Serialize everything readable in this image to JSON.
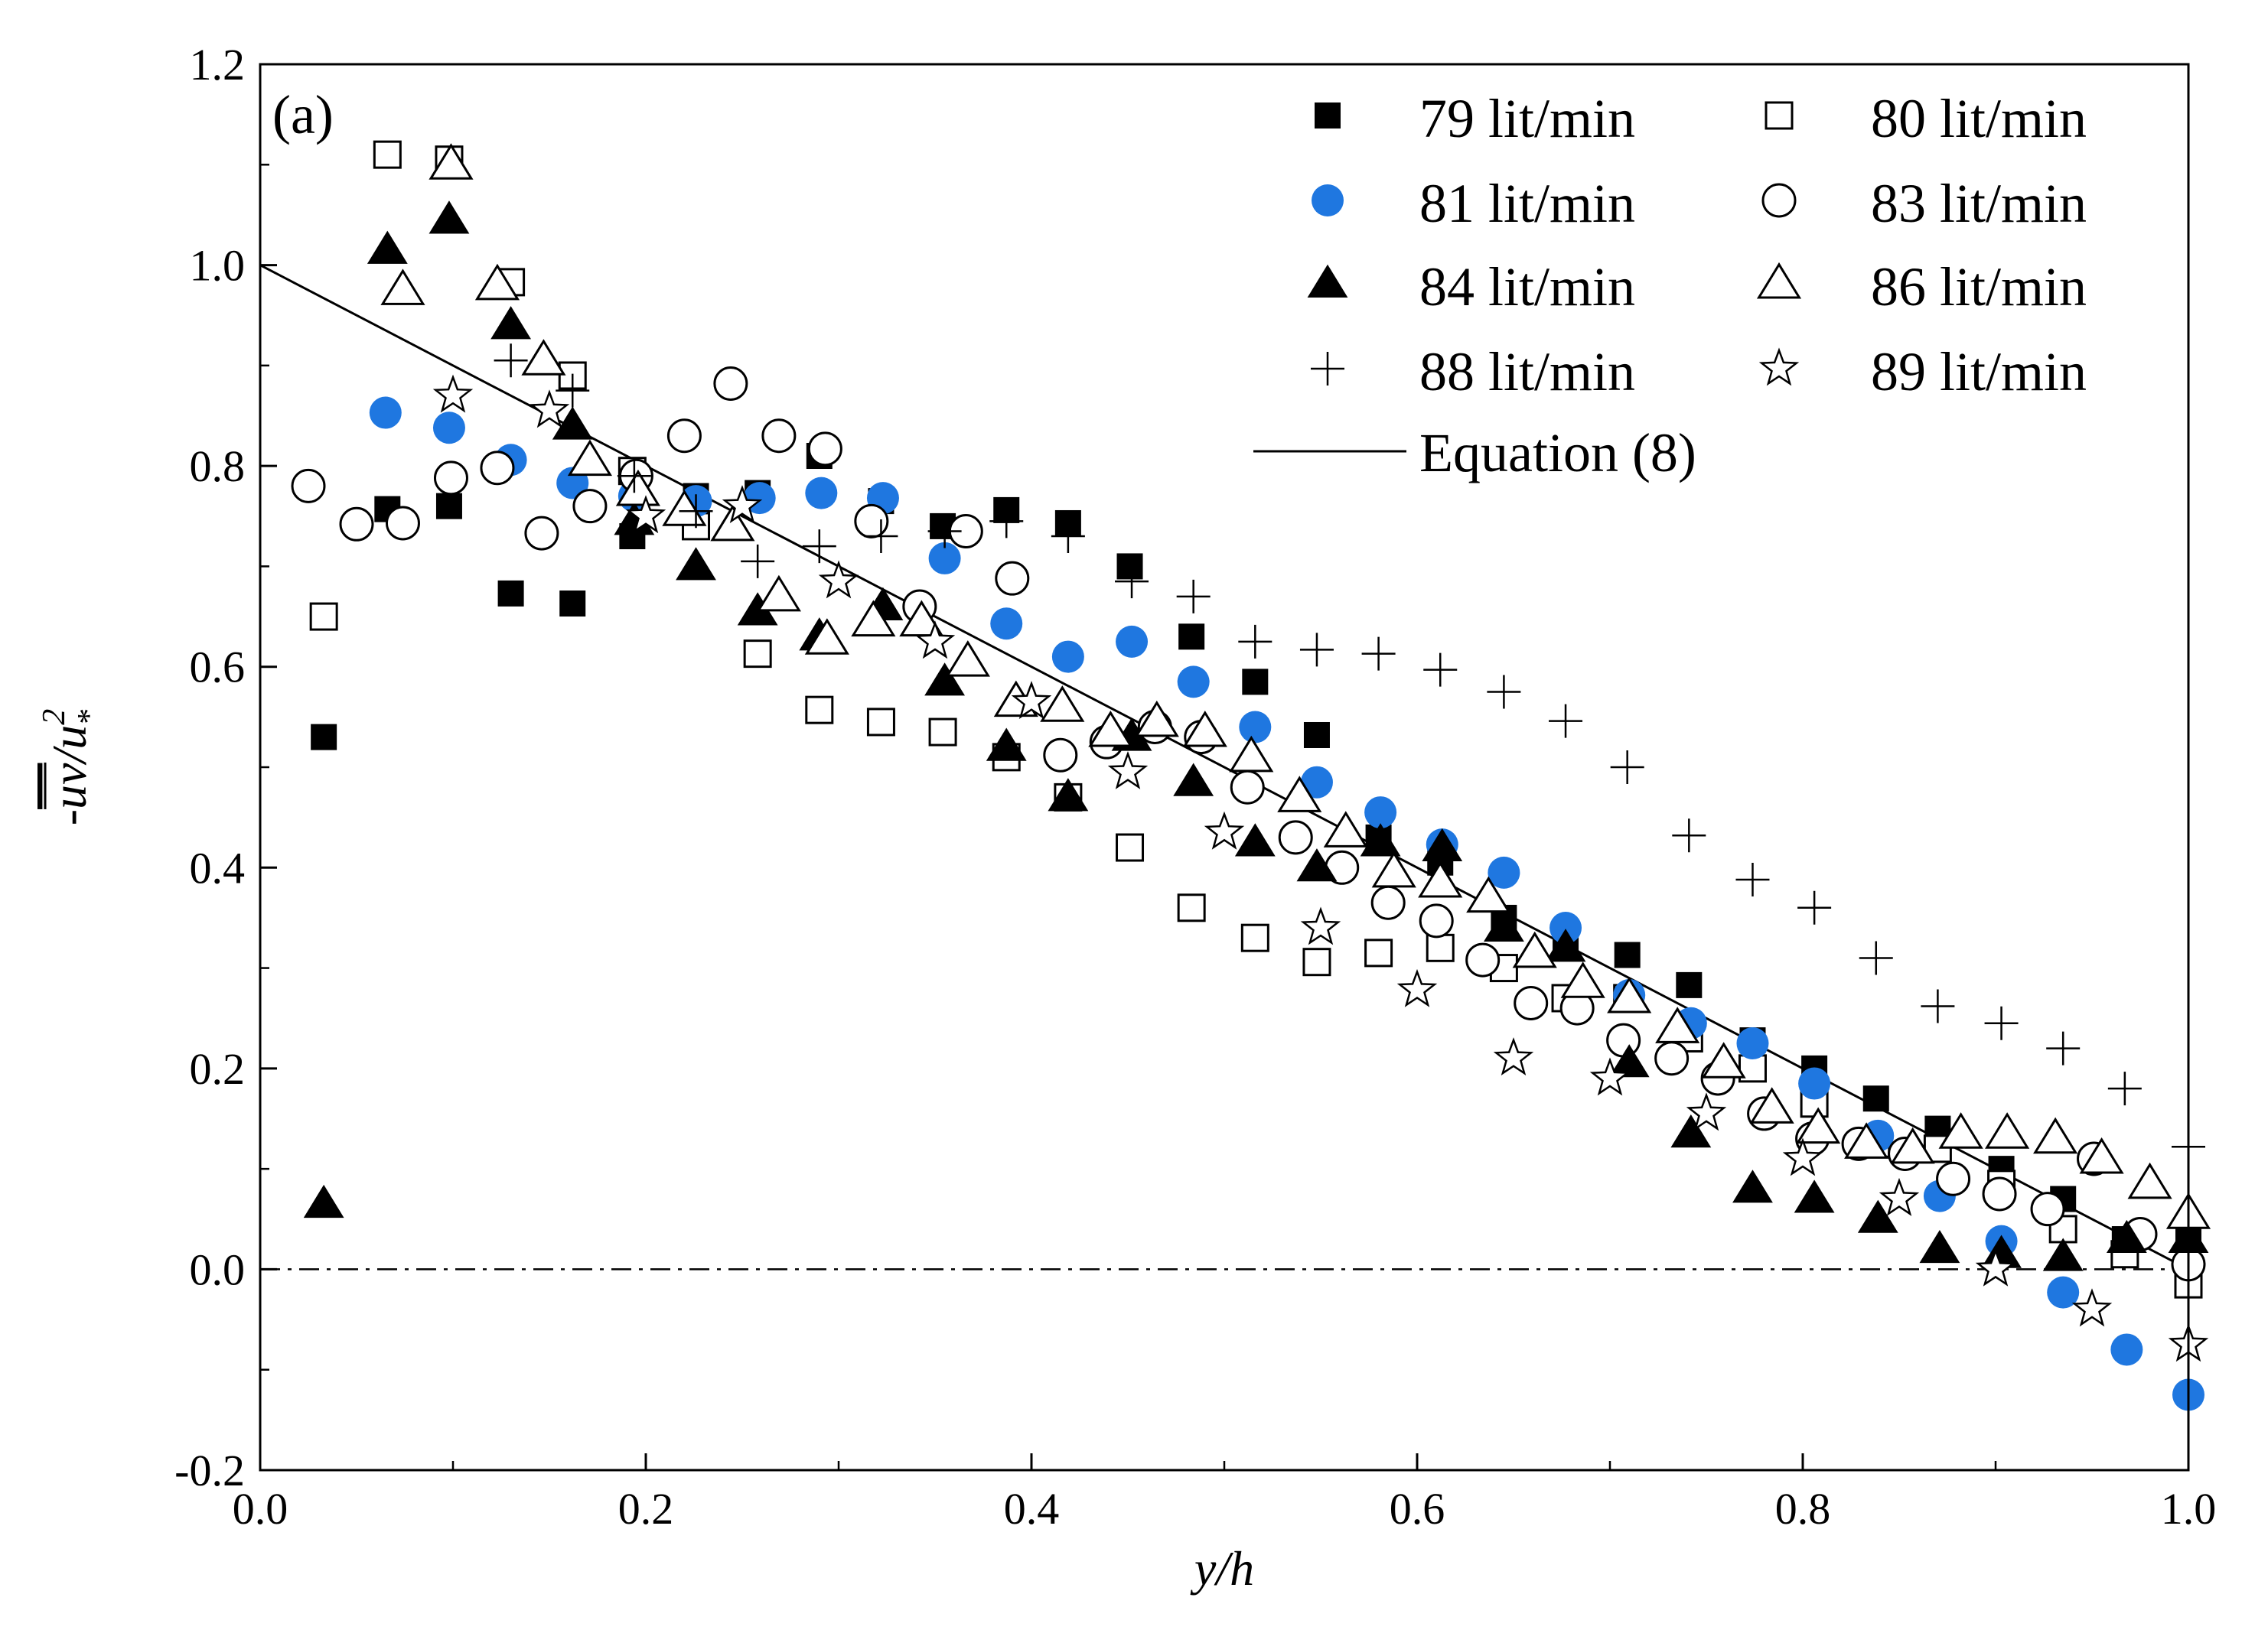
{
  "chart_data": {
    "type": "scatter",
    "title": "",
    "panel_label": "(a)",
    "xlabel": "y/h",
    "ylabel": "-uv/u*²",
    "ylabel_parts": {
      "prefix": "-",
      "overlined": "uv",
      "mid": "/u",
      "sup": "2",
      "sub": "*"
    },
    "xlim": [
      0.0,
      1.0
    ],
    "ylim": [
      -0.2,
      1.2
    ],
    "xticks": [
      "0.0",
      "0.2",
      "0.4",
      "0.6",
      "0.8",
      "1.0"
    ],
    "yticks": [
      "-0.2",
      "0.0",
      "0.2",
      "0.4",
      "0.6",
      "0.8",
      "1.0",
      "1.2"
    ],
    "legend_position": "top-right",
    "reference_line": {
      "y": 0.0,
      "style": "dash-dot"
    },
    "series": [
      {
        "name": "79 lit/min",
        "marker": "square",
        "fill": "#000000",
        "points": [
          [
            0.033,
            0.53
          ],
          [
            0.066,
            0.757
          ],
          [
            0.098,
            0.76
          ],
          [
            0.13,
            0.673
          ],
          [
            0.162,
            0.663
          ],
          [
            0.193,
            0.73
          ],
          [
            0.226,
            0.77
          ],
          [
            0.258,
            0.773
          ],
          [
            0.29,
            0.81
          ],
          [
            0.322,
            0.765
          ],
          [
            0.354,
            0.74
          ],
          [
            0.387,
            0.756
          ],
          [
            0.419,
            0.743
          ],
          [
            0.451,
            0.7
          ],
          [
            0.483,
            0.63
          ],
          [
            0.516,
            0.585
          ],
          [
            0.548,
            0.532
          ],
          [
            0.58,
            0.43
          ],
          [
            0.612,
            0.405
          ],
          [
            0.645,
            0.35
          ],
          [
            0.677,
            0.33
          ],
          [
            0.709,
            0.313
          ],
          [
            0.741,
            0.283
          ],
          [
            0.774,
            0.228
          ],
          [
            0.806,
            0.2
          ],
          [
            0.838,
            0.17
          ],
          [
            0.87,
            0.14
          ],
          [
            0.903,
            0.1
          ],
          [
            0.935,
            0.07
          ],
          [
            0.967,
            0.03
          ],
          [
            1.0,
            0.035
          ]
        ]
      },
      {
        "name": "80 lit/min",
        "marker": "square",
        "fill": "none",
        "points": [
          [
            0.033,
            0.65
          ],
          [
            0.066,
            1.11
          ],
          [
            0.098,
            1.105
          ],
          [
            0.13,
            0.983
          ],
          [
            0.162,
            0.89
          ],
          [
            0.193,
            0.795
          ],
          [
            0.226,
            0.74
          ],
          [
            0.258,
            0.613
          ],
          [
            0.29,
            0.557
          ],
          [
            0.322,
            0.545
          ],
          [
            0.354,
            0.535
          ],
          [
            0.387,
            0.51
          ],
          [
            0.419,
            0.47
          ],
          [
            0.451,
            0.42
          ],
          [
            0.483,
            0.36
          ],
          [
            0.516,
            0.33
          ],
          [
            0.548,
            0.306
          ],
          [
            0.58,
            0.315
          ],
          [
            0.612,
            0.32
          ],
          [
            0.645,
            0.3
          ],
          [
            0.677,
            0.27
          ],
          [
            0.709,
            0.27
          ],
          [
            0.741,
            0.23
          ],
          [
            0.774,
            0.2
          ],
          [
            0.806,
            0.165
          ],
          [
            0.838,
            0.125
          ],
          [
            0.87,
            0.12
          ],
          [
            0.903,
            0.085
          ],
          [
            0.935,
            0.04
          ],
          [
            0.967,
            0.015
          ],
          [
            1.0,
            -0.015
          ]
        ]
      },
      {
        "name": "81 lit/min",
        "marker": "circle",
        "fill": "#1f77e0",
        "points": [
          [
            0.065,
            0.853
          ],
          [
            0.098,
            0.838
          ],
          [
            0.13,
            0.806
          ],
          [
            0.162,
            0.783
          ],
          [
            0.194,
            0.77
          ],
          [
            0.226,
            0.765
          ],
          [
            0.259,
            0.768
          ],
          [
            0.291,
            0.773
          ],
          [
            0.323,
            0.768
          ],
          [
            0.355,
            0.708
          ],
          [
            0.387,
            0.643
          ],
          [
            0.419,
            0.61
          ],
          [
            0.452,
            0.625
          ],
          [
            0.484,
            0.585
          ],
          [
            0.516,
            0.54
          ],
          [
            0.548,
            0.485
          ],
          [
            0.581,
            0.455
          ],
          [
            0.613,
            0.423
          ],
          [
            0.645,
            0.395
          ],
          [
            0.677,
            0.34
          ],
          [
            0.71,
            0.273
          ],
          [
            0.742,
            0.245
          ],
          [
            0.774,
            0.225
          ],
          [
            0.806,
            0.185
          ],
          [
            0.839,
            0.133
          ],
          [
            0.871,
            0.073
          ],
          [
            0.903,
            0.028
          ],
          [
            0.935,
            -0.023
          ],
          [
            0.968,
            -0.08
          ],
          [
            1.0,
            -0.125
          ]
        ]
      },
      {
        "name": "83 lit/min",
        "marker": "circle",
        "fill": "none",
        "points": [
          [
            0.025,
            0.78
          ],
          [
            0.05,
            0.742
          ],
          [
            0.074,
            0.743
          ],
          [
            0.099,
            0.788
          ],
          [
            0.123,
            0.798
          ],
          [
            0.146,
            0.733
          ],
          [
            0.171,
            0.76
          ],
          [
            0.195,
            0.79
          ],
          [
            0.22,
            0.83
          ],
          [
            0.244,
            0.882
          ],
          [
            0.269,
            0.83
          ],
          [
            0.293,
            0.817
          ],
          [
            0.317,
            0.745
          ],
          [
            0.342,
            0.66
          ],
          [
            0.366,
            0.735
          ],
          [
            0.39,
            0.688
          ],
          [
            0.415,
            0.512
          ],
          [
            0.439,
            0.525
          ],
          [
            0.464,
            0.54
          ],
          [
            0.488,
            0.53
          ],
          [
            0.512,
            0.48
          ],
          [
            0.537,
            0.43
          ],
          [
            0.561,
            0.4
          ],
          [
            0.585,
            0.365
          ],
          [
            0.61,
            0.347
          ],
          [
            0.634,
            0.308
          ],
          [
            0.659,
            0.265
          ],
          [
            0.683,
            0.26
          ],
          [
            0.707,
            0.228
          ],
          [
            0.732,
            0.21
          ],
          [
            0.756,
            0.19
          ],
          [
            0.78,
            0.155
          ],
          [
            0.805,
            0.13
          ],
          [
            0.829,
            0.125
          ],
          [
            0.853,
            0.115
          ],
          [
            0.878,
            0.09
          ],
          [
            0.902,
            0.075
          ],
          [
            0.927,
            0.06
          ],
          [
            0.951,
            0.11
          ],
          [
            0.975,
            0.035
          ],
          [
            1.0,
            0.005
          ]
        ]
      },
      {
        "name": "84 lit/min",
        "marker": "triangle",
        "fill": "#000000",
        "points": [
          [
            0.033,
            0.065
          ],
          [
            0.066,
            1.015
          ],
          [
            0.098,
            1.045
          ],
          [
            0.13,
            0.94
          ],
          [
            0.162,
            0.84
          ],
          [
            0.194,
            0.745
          ],
          [
            0.226,
            0.7
          ],
          [
            0.258,
            0.655
          ],
          [
            0.29,
            0.63
          ],
          [
            0.323,
            0.66
          ],
          [
            0.355,
            0.585
          ],
          [
            0.387,
            0.52
          ],
          [
            0.419,
            0.47
          ],
          [
            0.452,
            0.53
          ],
          [
            0.484,
            0.485
          ],
          [
            0.516,
            0.425
          ],
          [
            0.548,
            0.4
          ],
          [
            0.581,
            0.425
          ],
          [
            0.613,
            0.42
          ],
          [
            0.645,
            0.34
          ],
          [
            0.677,
            0.32
          ],
          [
            0.71,
            0.205
          ],
          [
            0.742,
            0.135
          ],
          [
            0.774,
            0.08
          ],
          [
            0.806,
            0.07
          ],
          [
            0.839,
            0.05
          ],
          [
            0.871,
            0.02
          ],
          [
            0.903,
            0.015
          ],
          [
            0.935,
            0.012
          ],
          [
            0.968,
            0.03
          ],
          [
            1.0,
            0.03
          ]
        ]
      },
      {
        "name": "86 lit/min",
        "marker": "triangle",
        "fill": "none",
        "points": [
          [
            0.074,
            0.975
          ],
          [
            0.099,
            1.1
          ],
          [
            0.123,
            0.98
          ],
          [
            0.147,
            0.905
          ],
          [
            0.171,
            0.805
          ],
          [
            0.196,
            0.775
          ],
          [
            0.22,
            0.755
          ],
          [
            0.245,
            0.74
          ],
          [
            0.269,
            0.67
          ],
          [
            0.294,
            0.627
          ],
          [
            0.318,
            0.645
          ],
          [
            0.343,
            0.645
          ],
          [
            0.367,
            0.605
          ],
          [
            0.392,
            0.565
          ],
          [
            0.416,
            0.56
          ],
          [
            0.441,
            0.535
          ],
          [
            0.465,
            0.545
          ],
          [
            0.49,
            0.535
          ],
          [
            0.514,
            0.51
          ],
          [
            0.539,
            0.47
          ],
          [
            0.563,
            0.435
          ],
          [
            0.588,
            0.395
          ],
          [
            0.612,
            0.385
          ],
          [
            0.637,
            0.37
          ],
          [
            0.661,
            0.315
          ],
          [
            0.686,
            0.285
          ],
          [
            0.71,
            0.27
          ],
          [
            0.735,
            0.24
          ],
          [
            0.759,
            0.205
          ],
          [
            0.784,
            0.16
          ],
          [
            0.808,
            0.14
          ],
          [
            0.833,
            0.125
          ],
          [
            0.857,
            0.12
          ],
          [
            0.882,
            0.135
          ],
          [
            0.906,
            0.135
          ],
          [
            0.931,
            0.13
          ],
          [
            0.955,
            0.11
          ],
          [
            0.98,
            0.085
          ],
          [
            1.0,
            0.055
          ]
        ]
      },
      {
        "name": "88 lit/min",
        "marker": "plus",
        "fill": "none",
        "points": [
          [
            0.13,
            0.905
          ],
          [
            0.162,
            0.875
          ],
          [
            0.194,
            0.79
          ],
          [
            0.226,
            0.755
          ],
          [
            0.258,
            0.705
          ],
          [
            0.29,
            0.72
          ],
          [
            0.322,
            0.73
          ],
          [
            0.355,
            0.735
          ],
          [
            0.387,
            0.745
          ],
          [
            0.419,
            0.73
          ],
          [
            0.452,
            0.685
          ],
          [
            0.484,
            0.67
          ],
          [
            0.516,
            0.625
          ],
          [
            0.548,
            0.617
          ],
          [
            0.58,
            0.613
          ],
          [
            0.612,
            0.597
          ],
          [
            0.645,
            0.575
          ],
          [
            0.677,
            0.546
          ],
          [
            0.709,
            0.5
          ],
          [
            0.741,
            0.432
          ],
          [
            0.774,
            0.388
          ],
          [
            0.806,
            0.36
          ],
          [
            0.838,
            0.31
          ],
          [
            0.87,
            0.262
          ],
          [
            0.903,
            0.245
          ],
          [
            0.935,
            0.22
          ],
          [
            0.967,
            0.18
          ],
          [
            1.0,
            0.122
          ]
        ]
      },
      {
        "name": "89 lit/min",
        "marker": "star",
        "fill": "none",
        "points": [
          [
            0.1,
            0.87
          ],
          [
            0.15,
            0.855
          ],
          [
            0.2,
            0.75
          ],
          [
            0.25,
            0.76
          ],
          [
            0.3,
            0.685
          ],
          [
            0.35,
            0.625
          ],
          [
            0.4,
            0.565
          ],
          [
            0.45,
            0.495
          ],
          [
            0.5,
            0.435
          ],
          [
            0.55,
            0.34
          ],
          [
            0.6,
            0.278
          ],
          [
            0.65,
            0.21
          ],
          [
            0.7,
            0.19
          ],
          [
            0.75,
            0.155
          ],
          [
            0.8,
            0.11
          ],
          [
            0.85,
            0.07
          ],
          [
            0.9,
            0.0
          ],
          [
            0.95,
            -0.04
          ],
          [
            1.0,
            -0.075
          ]
        ]
      }
    ],
    "theory_line": {
      "name": "Equation (8)",
      "x": [
        0.0,
        1.0
      ],
      "y": [
        1.0,
        0.0
      ]
    }
  }
}
